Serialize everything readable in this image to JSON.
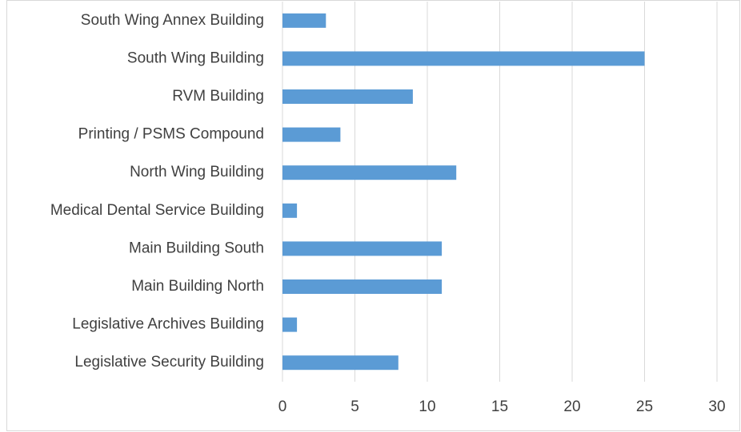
{
  "chart_data": {
    "type": "bar",
    "orientation": "horizontal",
    "categories": [
      "South Wing Annex Building",
      "South Wing Building",
      "RVM Building",
      "Printing / PSMS Compound",
      "North Wing Building",
      "Medical Dental Service Building",
      "Main Building South",
      "Main Building North",
      "Legislative Archives Building",
      "Legislative Security Building"
    ],
    "values": [
      3,
      25,
      9,
      4,
      12,
      1,
      11,
      11,
      1,
      8
    ],
    "color": "#5b9bd5",
    "xlim": [
      0,
      30
    ],
    "xticks": [
      0,
      5,
      10,
      15,
      20,
      25,
      30
    ],
    "grid": true
  }
}
